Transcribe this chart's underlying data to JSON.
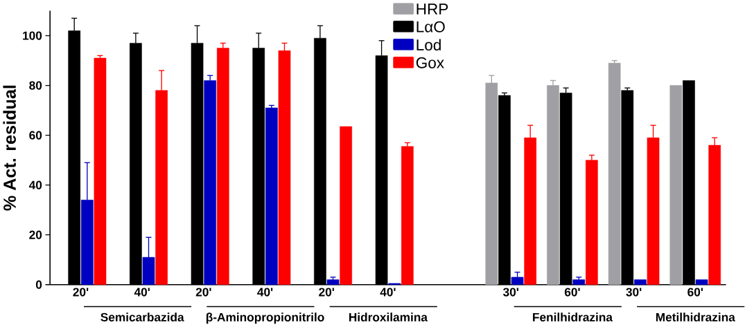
{
  "chart_data": {
    "type": "bar",
    "ylabel": "% Act. residual",
    "categories": [
      "20'",
      "40'",
      "20'",
      "40'",
      "20'",
      "40'",
      null,
      "30'",
      "60'",
      "30'",
      "60'"
    ],
    "series": [
      {
        "name": "HRP",
        "color": "#a0a0a4",
        "values": [
          null,
          null,
          null,
          null,
          null,
          null,
          null,
          81,
          80,
          89,
          80
        ],
        "errors": [
          null,
          null,
          null,
          null,
          null,
          null,
          null,
          [
            81,
            84
          ],
          [
            80,
            82
          ],
          [
            89,
            90
          ],
          null
        ]
      },
      {
        "name": "LαO",
        "color": "#000000",
        "values": [
          102,
          97,
          97,
          95,
          99,
          92,
          null,
          76,
          77,
          78,
          82
        ],
        "errors": [
          [
            102,
            107
          ],
          [
            97,
            101
          ],
          [
            97,
            104
          ],
          [
            95,
            101
          ],
          [
            99,
            104
          ],
          [
            92,
            98
          ],
          null,
          [
            76,
            77
          ],
          [
            77,
            79
          ],
          [
            78,
            79
          ],
          null
        ]
      },
      {
        "name": "Lod",
        "color": "#0000c0",
        "values": [
          34,
          11,
          82,
          71,
          2,
          0.5,
          null,
          3,
          2,
          2,
          2
        ],
        "errors": [
          [
            34,
            49
          ],
          [
            11,
            19
          ],
          [
            82,
            84
          ],
          [
            71,
            72
          ],
          [
            2,
            3
          ],
          null,
          null,
          [
            3,
            5
          ],
          [
            2,
            3
          ],
          null,
          null
        ]
      },
      {
        "name": "Gox",
        "color": "#ff0000",
        "values": [
          91,
          78,
          95,
          94,
          63.5,
          55.5,
          null,
          59,
          50,
          59,
          56
        ],
        "errors": [
          [
            91,
            92
          ],
          [
            78,
            86
          ],
          [
            95,
            97
          ],
          [
            94,
            97
          ],
          null,
          [
            55.5,
            57
          ],
          null,
          [
            59,
            64
          ],
          [
            50,
            52
          ],
          [
            59,
            64
          ],
          [
            56,
            59
          ]
        ]
      }
    ],
    "annotations": [
      "Semicarbazida",
      "β-Aminopropionitrilo",
      "Hidroxilamina",
      "Fenilhidrazina",
      "Metilhidrazina"
    ],
    "ylim": [
      0,
      110
    ],
    "yticks": [
      0,
      20,
      40,
      60,
      80,
      100
    ],
    "grid": false,
    "legend": "top"
  }
}
